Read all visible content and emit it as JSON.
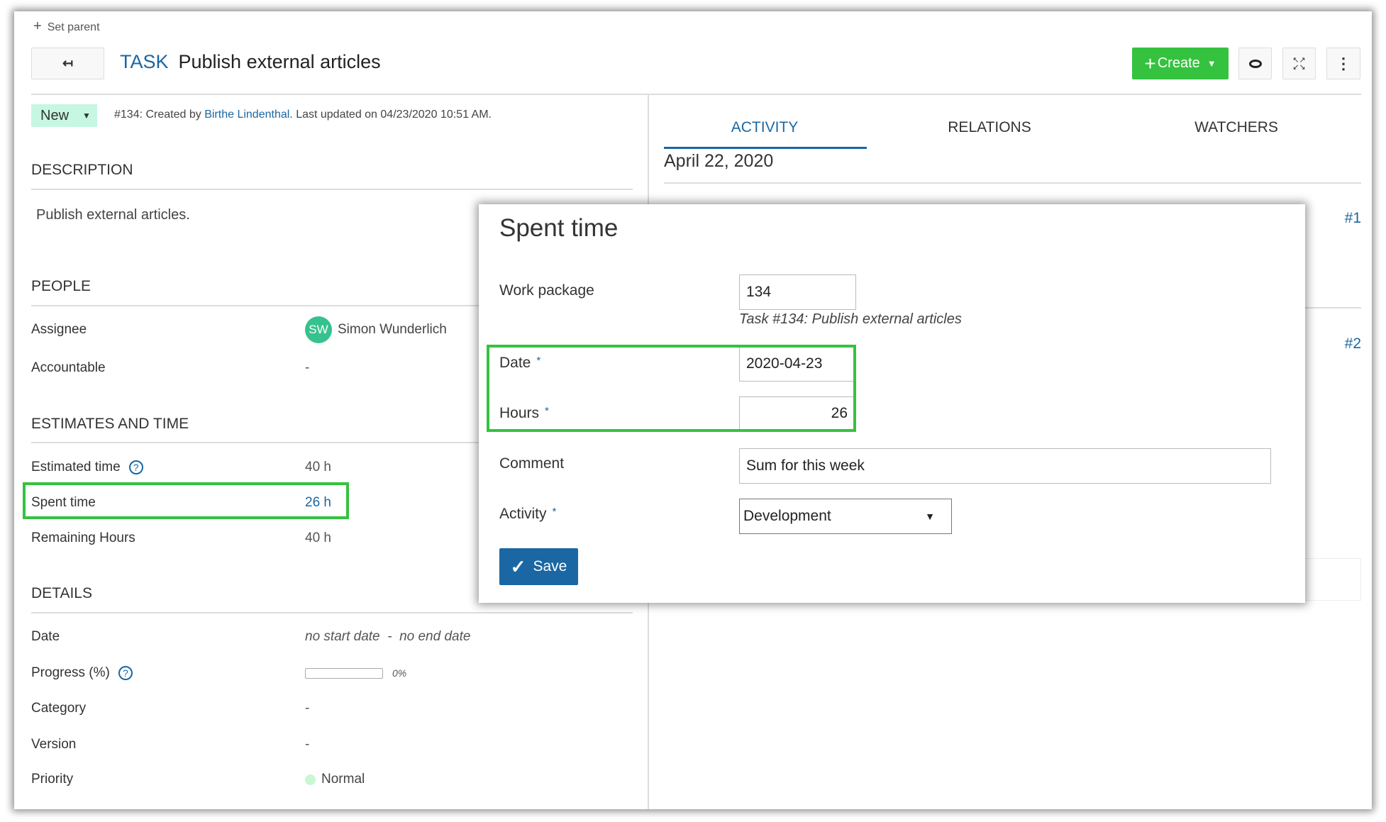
{
  "header": {
    "set_parent": "Set parent",
    "type": "TASK",
    "title": "Publish external articles",
    "create_label": "Create"
  },
  "meta": {
    "status": "New",
    "prefix": "#134: Created by ",
    "author": "Birthe Lindenthal",
    "suffix": ". Last updated on 04/23/2020 10:51 AM."
  },
  "description": {
    "heading": "DESCRIPTION",
    "text": "Publish external articles."
  },
  "people": {
    "heading": "PEOPLE",
    "assignee_label": "Assignee",
    "assignee_initials": "SW",
    "assignee_name": "Simon Wunderlich",
    "accountable_label": "Accountable",
    "accountable_value": "-"
  },
  "estimates": {
    "heading": "ESTIMATES AND TIME",
    "estimated_label": "Estimated time",
    "estimated_value": "40 h",
    "spent_label": "Spent time",
    "spent_value": "26 h",
    "remaining_label": "Remaining Hours",
    "remaining_value": "40 h"
  },
  "details": {
    "heading": "DETAILS",
    "date_label": "Date",
    "start": "no start date",
    "sep": "-",
    "end": "no end date",
    "progress_label": "Progress (%)",
    "progress_value": "0%",
    "progress_fraction": 0,
    "category_label": "Category",
    "category_value": "-",
    "version_label": "Version",
    "version_value": "-",
    "priority_label": "Priority",
    "priority_value": "Normal"
  },
  "tabs": [
    {
      "label": "ACTIVITY",
      "active": true
    },
    {
      "label": "RELATIONS"
    },
    {
      "label": "WATCHERS"
    }
  ],
  "activity": {
    "date": "April 22, 2020",
    "items": [
      "#1",
      "#2"
    ]
  },
  "modal": {
    "title": "Spent time",
    "wp_label": "Work package",
    "wp_value": "134",
    "wp_hint": "Task #134: Publish external articles",
    "date_label": "Date",
    "date_value": "2020-04-23",
    "hours_label": "Hours",
    "hours_value": "26",
    "comment_label": "Comment",
    "comment_value": "Sum for this week",
    "activity_label": "Activity",
    "activity_value": "Development",
    "required": "*",
    "save_label": "Save"
  },
  "colors": {
    "accent": "#1a67a3",
    "create": "#35c23f",
    "highlight": "#35c23f",
    "status_bg": "#c6f7e2"
  }
}
